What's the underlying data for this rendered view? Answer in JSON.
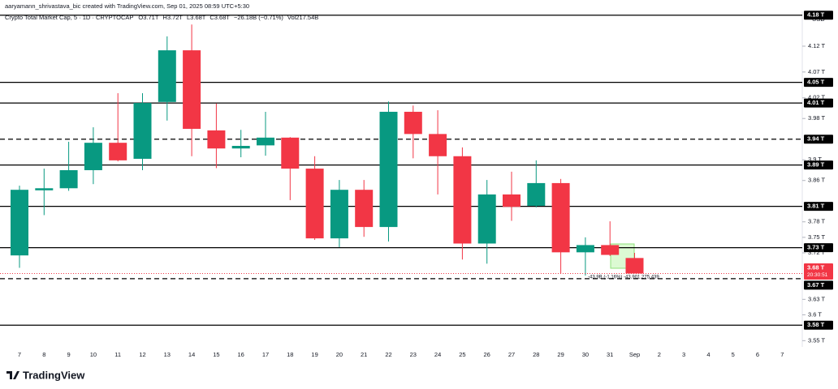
{
  "chart_data": {
    "type": "candlestick",
    "credit": "aaryamann_shrivastava_bic created with TradingView.com, Sep 01, 2025 08:59 UTC+5:30",
    "title": "Crypto Total Market Cap, 5 · 1D · CRYPTOCAP",
    "header_values": [
      "O3.71T",
      "H3.72T",
      "L3.68T",
      "C3.68T",
      "−26.18B (−0.71%)"
    ],
    "volume": "Vol217.54B",
    "currency": "USD",
    "brand": "TradingView",
    "categories": [
      "7",
      "8",
      "9",
      "10",
      "11",
      "12",
      "13",
      "14",
      "15",
      "16",
      "17",
      "18",
      "19",
      "20",
      "21",
      "22",
      "23",
      "24",
      "25",
      "26",
      "27",
      "28",
      "29",
      "30",
      "31",
      "Sep",
      "2",
      "3",
      "4",
      "5",
      "6",
      "7"
    ],
    "open": [
      3.715,
      3.841,
      3.845,
      3.88,
      3.933,
      3.902,
      4.012,
      4.112,
      3.957,
      3.922,
      3.928,
      3.943,
      3.883,
      3.748,
      3.842,
      3.77,
      3.993,
      3.95,
      3.907,
      3.738,
      3.833,
      3.811,
      3.855,
      3.721,
      3.735,
      3.71,
      null,
      null,
      null,
      null,
      null,
      null
    ],
    "high": [
      3.85,
      3.883,
      3.935,
      3.963,
      4.029,
      4.029,
      4.139,
      4.162,
      4.009,
      3.958,
      3.993,
      3.944,
      3.907,
      3.861,
      3.861,
      4.013,
      4.005,
      3.996,
      3.924,
      3.861,
      3.877,
      3.899,
      3.863,
      3.75,
      3.781,
      3.72,
      null,
      null,
      null,
      null,
      null,
      null
    ],
    "low": [
      3.691,
      3.793,
      3.84,
      3.853,
      3.897,
      3.88,
      3.976,
      3.907,
      3.884,
      3.905,
      3.908,
      3.822,
      3.745,
      3.731,
      3.751,
      3.742,
      3.903,
      3.833,
      3.707,
      3.699,
      3.782,
      3.808,
      3.68,
      3.676,
      3.714,
      3.68,
      null,
      null,
      null,
      null,
      null,
      null
    ],
    "close": [
      3.842,
      3.845,
      3.88,
      3.933,
      3.899,
      4.01,
      4.112,
      3.96,
      3.922,
      3.927,
      3.943,
      3.883,
      3.748,
      3.842,
      3.77,
      3.993,
      3.95,
      3.907,
      3.738,
      3.833,
      3.809,
      3.855,
      3.721,
      3.735,
      3.716,
      3.68,
      null,
      null,
      null,
      null,
      null,
      null
    ],
    "up_color": "#089981",
    "down_color": "#f23645",
    "ylim": [
      3.538,
      4.178
    ],
    "yticks": [
      {
        "value": 4.12,
        "label": "4.12 T"
      },
      {
        "value": 4.07,
        "label": "4.07 T"
      },
      {
        "value": 4.02,
        "label": "4.02 T"
      },
      {
        "value": 3.98,
        "label": "3.98 T"
      },
      {
        "value": 3.9,
        "label": "3.9 T"
      },
      {
        "value": 3.86,
        "label": "3.86 T"
      },
      {
        "value": 3.78,
        "label": "3.78 T"
      },
      {
        "value": 3.75,
        "label": "3.75 T"
      },
      {
        "value": 3.72,
        "label": "3.72 T"
      },
      {
        "value": 3.63,
        "label": "3.63 T"
      },
      {
        "value": 3.6,
        "label": "3.6 T"
      },
      {
        "value": 3.55,
        "label": "3.55 T"
      }
    ],
    "grid": false,
    "levels": [
      {
        "value": 4.18,
        "label": "4.18 T",
        "style": "solid"
      },
      {
        "value": 4.05,
        "label": "4.05 T",
        "style": "solid"
      },
      {
        "value": 4.01,
        "label": "4.01 T",
        "style": "solid"
      },
      {
        "value": 3.94,
        "label": "3.94 T",
        "style": "dashed"
      },
      {
        "value": 3.89,
        "label": "3.89 T",
        "style": "solid"
      },
      {
        "value": 3.81,
        "label": "3.81 T",
        "style": "solid"
      },
      {
        "value": 3.73,
        "label": "3.73 T",
        "style": "solid"
      },
      {
        "value": 3.67,
        "label": "3.67 T",
        "style": "dashed"
      },
      {
        "value": 3.58,
        "label": "3.58 T",
        "style": "solid"
      }
    ],
    "current_price": {
      "value": 3.68,
      "label": "3.68 T",
      "countdown": "20:30:51"
    },
    "annotation": "-43.9B (-1.16%) -43,901,275,439"
  }
}
